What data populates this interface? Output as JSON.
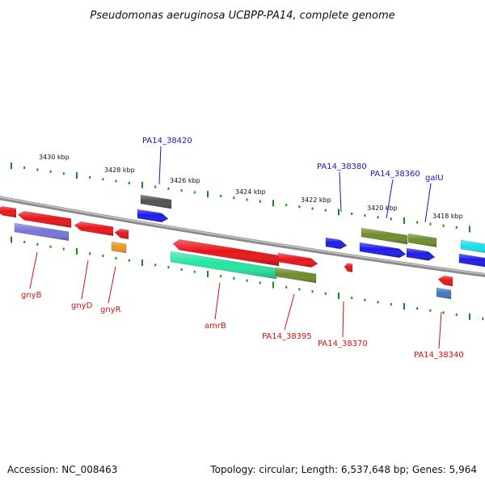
{
  "title": "Pseudomonas aeruginosa UCBPP-PA14, complete genome",
  "footer": {
    "accession": "Accession: NC_008463",
    "info": "Topology: circular; Length: 6,537,648 bp; Genes: 5,964"
  },
  "scale_labels": [
    "3430 kbp",
    "3428 kbp",
    "3426 kbp",
    "3424 kbp",
    "3422 kbp",
    "3420 kbp",
    "3418 kbp"
  ],
  "gene_labels_top": [
    "PA14_38420",
    "PA14_38380",
    "PA14_38360",
    "galU"
  ],
  "gene_labels_bottom": [
    "gnyB",
    "gnyD",
    "gnyR",
    "amrB",
    "PA14_38395",
    "PA14_38370",
    "PA14_38340"
  ],
  "colors": {
    "backbone": "#8a8a8a",
    "red": "#e8141a",
    "blue": "#1b1be8",
    "green": "#6e8c2a",
    "gray": "#505050",
    "lavender": "#7a74d8",
    "orange": "#f0961e",
    "mint": "#22e6a0",
    "cyan": "#16e0e8",
    "steel": "#3f7ac0",
    "tick": "#1a8a1a",
    "label_blue": "#1818c0",
    "label_red": "#d01010"
  }
}
